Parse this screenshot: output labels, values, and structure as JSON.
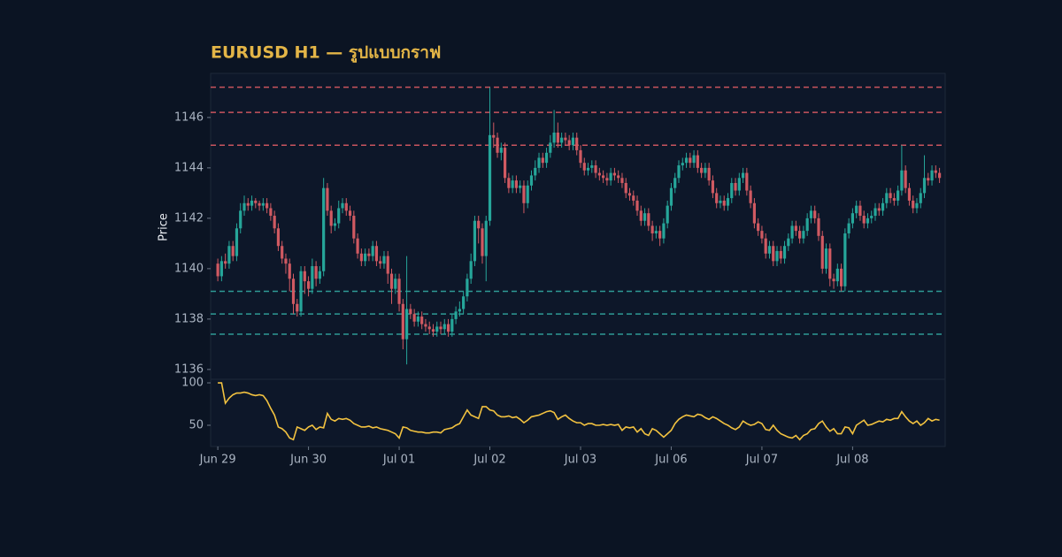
{
  "chart_data": [
    {
      "type": "candlestick",
      "title": "EURUSD H1 — รูปแบบกราฟ",
      "ylabel": "Price",
      "up_color": "#26a69a",
      "down_color": "#d05a62",
      "xlim": [
        -1.9,
        192.5
      ],
      "ylim": [
        1135.61,
        1147.75
      ],
      "yticks": [
        1136,
        1138,
        1140,
        1142,
        1144,
        1146
      ],
      "open": [
        1140.2,
        1139.7,
        1140.3,
        1140.2,
        1140.9,
        1140.5,
        1141.6,
        1142.3,
        1142.6,
        1142.5,
        1142.7,
        1142.6,
        1142.5,
        1142.6,
        1142.4,
        1142.1,
        1141.6,
        1140.9,
        1140.4,
        1140.2,
        1139.6,
        1138.6,
        1138.3,
        1139.9,
        1139.5,
        1139.2,
        1140.1,
        1139.6,
        1139.9,
        1143.2,
        1142.3,
        1141.7,
        1141.8,
        1142.4,
        1142.6,
        1142.3,
        1142.1,
        1141.2,
        1140.6,
        1140.3,
        1140.6,
        1140.5,
        1140.9,
        1140.3,
        1140.2,
        1140.5,
        1139.8,
        1139.2,
        1139.6,
        1138.6,
        1137.2,
        1138.4,
        1138.2,
        1137.9,
        1138.1,
        1137.8,
        1137.7,
        1137.6,
        1137.5,
        1137.7,
        1137.6,
        1137.8,
        1137.5,
        1138.0,
        1138.3,
        1138.4,
        1138.9,
        1139.6,
        1140.3,
        1141.9,
        1141.6,
        1140.5,
        1141.9,
        1145.3,
        1145.2,
        1144.6,
        1144.8,
        1143.6,
        1143.2,
        1143.5,
        1143.2,
        1143.3,
        1142.6,
        1143.3,
        1143.7,
        1144.0,
        1144.4,
        1144.2,
        1144.6,
        1145.0,
        1145.4,
        1145.0,
        1145.2,
        1145.1,
        1144.9,
        1145.2,
        1144.7,
        1144.2,
        1143.9,
        1144.0,
        1144.1,
        1143.8,
        1143.7,
        1143.6,
        1143.5,
        1143.8,
        1143.7,
        1143.6,
        1143.4,
        1143.0,
        1142.9,
        1142.7,
        1142.3,
        1141.9,
        1142.2,
        1141.7,
        1141.4,
        1141.5,
        1141.2,
        1141.8,
        1142.5,
        1143.2,
        1143.6,
        1144.1,
        1144.2,
        1144.4,
        1144.2,
        1144.5,
        1144.0,
        1143.8,
        1144.0,
        1143.5,
        1143.0,
        1142.6,
        1142.7,
        1142.5,
        1142.8,
        1143.4,
        1143.1,
        1143.6,
        1143.8,
        1143.1,
        1142.6,
        1141.8,
        1141.5,
        1141.2,
        1140.6,
        1140.9,
        1140.3,
        1140.7,
        1140.4,
        1140.9,
        1141.2,
        1141.7,
        1141.5,
        1141.2,
        1141.5,
        1142.0,
        1142.3,
        1142.0,
        1141.3,
        1140.0,
        1140.8,
        1139.6,
        1139.5,
        1140.0,
        1139.3,
        1141.4,
        1141.8,
        1142.2,
        1142.5,
        1142.1,
        1141.8,
        1142.0,
        1142.1,
        1142.4,
        1142.3,
        1142.6,
        1143.0,
        1142.8,
        1142.7,
        1143.1,
        1143.9,
        1143.2,
        1142.7,
        1142.4,
        1142.6,
        1143.0,
        1143.6,
        1143.5,
        1143.9,
        1143.8
      ],
      "high": [
        1140.4,
        1140.5,
        1140.6,
        1141.1,
        1141.1,
        1141.8,
        1142.6,
        1142.9,
        1142.8,
        1142.9,
        1142.8,
        1142.7,
        1142.8,
        1142.8,
        1142.6,
        1142.3,
        1141.8,
        1141.1,
        1140.6,
        1140.4,
        1139.8,
        1138.8,
        1140.1,
        1140.1,
        1139.7,
        1140.4,
        1140.3,
        1140.1,
        1143.6,
        1143.4,
        1142.5,
        1142.0,
        1142.7,
        1142.8,
        1142.8,
        1142.5,
        1142.3,
        1141.4,
        1140.8,
        1140.8,
        1140.8,
        1141.1,
        1141.1,
        1140.5,
        1140.7,
        1140.7,
        1140.0,
        1139.8,
        1139.8,
        1138.8,
        1140.5,
        1138.6,
        1138.4,
        1138.3,
        1138.3,
        1138.0,
        1137.9,
        1137.8,
        1137.9,
        1137.9,
        1138.0,
        1138.0,
        1138.2,
        1138.5,
        1138.7,
        1139.1,
        1139.8,
        1140.6,
        1142.1,
        1142.1,
        1141.8,
        1142.1,
        1147.2,
        1145.8,
        1145.4,
        1145.0,
        1145.0,
        1143.8,
        1143.7,
        1143.7,
        1143.5,
        1143.5,
        1143.5,
        1143.9,
        1144.3,
        1144.6,
        1144.6,
        1144.8,
        1145.3,
        1146.3,
        1145.8,
        1145.4,
        1145.4,
        1145.3,
        1145.4,
        1145.4,
        1144.9,
        1144.4,
        1144.2,
        1144.3,
        1144.3,
        1144.0,
        1143.9,
        1143.8,
        1144.0,
        1144.0,
        1143.9,
        1143.8,
        1143.6,
        1143.2,
        1143.1,
        1142.9,
        1142.5,
        1142.4,
        1142.4,
        1141.9,
        1141.7,
        1141.7,
        1142.0,
        1142.7,
        1143.4,
        1143.8,
        1144.3,
        1144.4,
        1144.6,
        1144.6,
        1144.7,
        1144.7,
        1144.2,
        1144.2,
        1144.2,
        1143.7,
        1143.2,
        1142.9,
        1142.9,
        1143.0,
        1143.6,
        1143.6,
        1143.8,
        1144.0,
        1144.0,
        1143.3,
        1142.8,
        1142.0,
        1141.7,
        1141.4,
        1141.1,
        1141.1,
        1140.9,
        1140.9,
        1141.1,
        1141.4,
        1141.9,
        1141.9,
        1141.7,
        1141.7,
        1142.2,
        1142.5,
        1142.5,
        1142.2,
        1141.5,
        1141.0,
        1141.0,
        1139.8,
        1140.2,
        1140.2,
        1141.6,
        1142.0,
        1142.4,
        1142.7,
        1142.7,
        1142.3,
        1142.2,
        1142.3,
        1142.6,
        1142.6,
        1142.8,
        1143.2,
        1143.2,
        1143.0,
        1143.3,
        1144.9,
        1144.1,
        1143.4,
        1142.9,
        1142.8,
        1143.2,
        1144.5,
        1143.8,
        1144.1,
        1144.1,
        1144.0
      ],
      "low": [
        1139.5,
        1139.5,
        1140.0,
        1140.0,
        1140.3,
        1140.3,
        1141.4,
        1142.1,
        1142.3,
        1142.3,
        1142.4,
        1142.3,
        1142.3,
        1142.2,
        1141.9,
        1141.4,
        1140.7,
        1140.2,
        1139.8,
        1139.1,
        1138.2,
        1138.1,
        1138.1,
        1139.0,
        1138.9,
        1139.0,
        1139.3,
        1139.4,
        1139.7,
        1142.1,
        1141.4,
        1141.5,
        1141.6,
        1142.2,
        1142.1,
        1141.9,
        1141.0,
        1140.4,
        1140.1,
        1140.1,
        1140.3,
        1140.3,
        1140.1,
        1140.0,
        1140.0,
        1139.4,
        1138.6,
        1139.0,
        1138.3,
        1136.8,
        1136.2,
        1138.0,
        1137.7,
        1137.7,
        1137.6,
        1137.5,
        1137.4,
        1137.3,
        1137.3,
        1137.4,
        1137.4,
        1137.3,
        1137.3,
        1137.8,
        1138.1,
        1138.2,
        1138.7,
        1139.4,
        1140.1,
        1141.0,
        1140.2,
        1139.5,
        1141.7,
        1144.8,
        1144.4,
        1144.3,
        1143.4,
        1143.0,
        1143.0,
        1143.0,
        1143.0,
        1142.2,
        1142.4,
        1143.1,
        1143.5,
        1143.8,
        1144.0,
        1144.0,
        1144.4,
        1144.8,
        1144.8,
        1144.8,
        1144.9,
        1144.7,
        1144.7,
        1144.5,
        1144.0,
        1143.7,
        1143.7,
        1143.8,
        1143.6,
        1143.5,
        1143.4,
        1143.3,
        1143.3,
        1143.5,
        1143.4,
        1143.2,
        1142.8,
        1142.7,
        1142.5,
        1142.1,
        1141.7,
        1141.7,
        1141.5,
        1141.1,
        1141.2,
        1140.9,
        1141.0,
        1141.6,
        1142.3,
        1143.0,
        1143.4,
        1143.9,
        1144.0,
        1144.0,
        1144.0,
        1143.8,
        1143.6,
        1143.6,
        1143.3,
        1142.8,
        1142.4,
        1142.4,
        1142.3,
        1142.3,
        1142.6,
        1142.9,
        1142.9,
        1143.4,
        1142.9,
        1142.4,
        1141.6,
        1141.3,
        1141.0,
        1140.4,
        1140.4,
        1140.1,
        1140.1,
        1140.2,
        1140.2,
        1140.7,
        1141.0,
        1141.3,
        1141.0,
        1141.0,
        1141.3,
        1141.8,
        1141.8,
        1141.1,
        1139.8,
        1139.8,
        1139.3,
        1139.2,
        1139.3,
        1139.1,
        1139.1,
        1141.2,
        1141.6,
        1142.0,
        1141.9,
        1141.6,
        1141.6,
        1141.8,
        1141.9,
        1142.1,
        1142.1,
        1142.4,
        1142.6,
        1142.5,
        1142.5,
        1142.9,
        1143.0,
        1142.5,
        1142.2,
        1142.2,
        1142.4,
        1142.8,
        1143.3,
        1143.3,
        1143.6,
        1143.4
      ],
      "close": [
        1139.7,
        1140.3,
        1140.2,
        1140.9,
        1140.5,
        1141.6,
        1142.3,
        1142.6,
        1142.5,
        1142.7,
        1142.6,
        1142.5,
        1142.6,
        1142.4,
        1142.1,
        1141.6,
        1140.9,
        1140.4,
        1140.2,
        1139.6,
        1138.6,
        1138.3,
        1139.9,
        1139.5,
        1139.2,
        1140.1,
        1139.6,
        1139.9,
        1143.2,
        1142.3,
        1141.7,
        1141.8,
        1142.4,
        1142.6,
        1142.3,
        1142.1,
        1141.2,
        1140.6,
        1140.3,
        1140.6,
        1140.5,
        1140.9,
        1140.3,
        1140.2,
        1140.5,
        1139.8,
        1139.2,
        1139.6,
        1138.6,
        1137.2,
        1138.4,
        1138.2,
        1137.9,
        1138.1,
        1137.8,
        1137.7,
        1137.6,
        1137.5,
        1137.7,
        1137.6,
        1137.8,
        1137.5,
        1138.0,
        1138.3,
        1138.4,
        1138.9,
        1139.6,
        1140.3,
        1141.9,
        1141.6,
        1140.5,
        1141.9,
        1145.3,
        1145.2,
        1144.6,
        1144.8,
        1143.6,
        1143.2,
        1143.5,
        1143.2,
        1143.3,
        1142.6,
        1143.3,
        1143.7,
        1144.0,
        1144.4,
        1144.2,
        1144.6,
        1145.0,
        1145.4,
        1145.0,
        1145.2,
        1145.1,
        1144.9,
        1145.2,
        1144.7,
        1144.2,
        1143.9,
        1144.0,
        1144.1,
        1143.8,
        1143.7,
        1143.6,
        1143.5,
        1143.8,
        1143.7,
        1143.6,
        1143.4,
        1143.0,
        1142.9,
        1142.7,
        1142.3,
        1141.9,
        1142.2,
        1141.7,
        1141.4,
        1141.5,
        1141.2,
        1141.8,
        1142.5,
        1143.2,
        1143.6,
        1144.1,
        1144.2,
        1144.4,
        1144.2,
        1144.5,
        1144.0,
        1143.8,
        1144.0,
        1143.5,
        1143.0,
        1142.6,
        1142.7,
        1142.5,
        1142.8,
        1143.4,
        1143.1,
        1143.6,
        1143.8,
        1143.1,
        1142.6,
        1141.8,
        1141.5,
        1141.2,
        1140.6,
        1140.9,
        1140.3,
        1140.7,
        1140.4,
        1140.9,
        1141.2,
        1141.7,
        1141.5,
        1141.2,
        1141.5,
        1142.0,
        1142.3,
        1142.0,
        1141.3,
        1140.0,
        1140.8,
        1139.6,
        1139.5,
        1140.0,
        1139.3,
        1141.4,
        1141.8,
        1142.2,
        1142.5,
        1142.1,
        1141.8,
        1142.0,
        1142.1,
        1142.4,
        1142.3,
        1142.6,
        1143.0,
        1142.8,
        1142.7,
        1143.1,
        1143.9,
        1143.2,
        1142.7,
        1142.4,
        1142.6,
        1143.0,
        1143.6,
        1143.5,
        1143.9,
        1143.8,
        1143.6
      ],
      "levels": {
        "resistance": {
          "color": "#c9545e",
          "values": [
            1147.2,
            1146.2,
            1144.9
          ]
        },
        "support": {
          "color": "#2e9a95",
          "values": [
            1139.1,
            1138.2,
            1137.4
          ]
        }
      }
    },
    {
      "type": "line",
      "color": "#f2c240",
      "xlim": [
        -1.9,
        192.5
      ],
      "ylim": [
        25,
        104.2
      ],
      "yticks": [
        50,
        100
      ],
      "xticks": [
        {
          "value": 0,
          "label": "Jun 29"
        },
        {
          "value": 24,
          "label": "Jun 30"
        },
        {
          "value": 48,
          "label": "Jul 01"
        },
        {
          "value": 72,
          "label": "Jul 02"
        },
        {
          "value": 96,
          "label": "Jul 03"
        },
        {
          "value": 120,
          "label": "Jul 06"
        },
        {
          "value": 144,
          "label": "Jul 07"
        },
        {
          "value": 168,
          "label": "Jul 08"
        }
      ],
      "values": [
        100,
        100,
        76,
        82,
        86,
        88,
        88,
        89,
        88,
        86,
        85,
        86,
        85,
        79,
        70,
        62,
        48,
        46,
        42,
        35,
        33,
        48,
        46,
        44,
        48,
        50,
        45,
        48,
        47,
        64,
        57,
        55,
        58,
        57,
        58,
        56,
        52,
        50,
        48,
        48,
        49,
        47,
        48,
        46,
        45,
        44,
        42,
        40,
        35,
        48,
        47,
        44,
        43,
        42,
        42,
        41,
        41,
        42,
        42,
        41,
        45,
        46,
        47,
        50,
        52,
        60,
        68,
        62,
        60,
        58,
        72,
        72,
        68,
        67,
        62,
        60,
        60,
        61,
        59,
        60,
        57,
        53,
        56,
        60,
        61,
        62,
        64,
        66,
        67,
        65,
        57,
        60,
        62,
        58,
        55,
        53,
        53,
        50,
        52,
        52,
        50,
        50,
        51,
        50,
        51,
        50,
        51,
        44,
        48,
        47,
        48,
        42,
        46,
        40,
        38,
        46,
        44,
        40,
        36,
        40,
        44,
        52,
        57,
        60,
        62,
        61,
        60,
        63,
        62,
        59,
        57,
        60,
        58,
        55,
        52,
        50,
        47,
        45,
        48,
        55,
        52,
        50,
        51,
        54,
        52,
        45,
        44,
        50,
        44,
        40,
        38,
        36,
        35,
        38,
        33,
        38,
        40,
        45,
        46,
        52,
        55,
        48,
        43,
        46,
        40,
        40,
        48,
        47,
        40,
        50,
        53,
        56,
        50,
        51,
        53,
        55,
        54,
        57,
        56,
        58,
        58,
        66,
        60,
        55,
        52,
        55,
        50,
        53,
        58,
        55,
        57,
        56
      ]
    }
  ]
}
